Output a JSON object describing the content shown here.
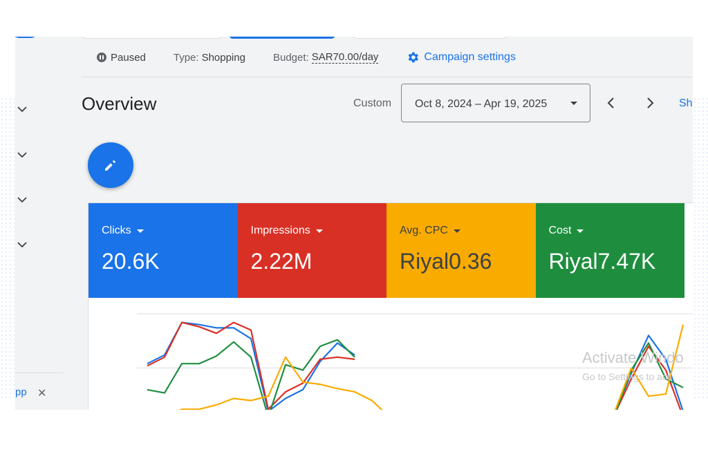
{
  "status": {
    "state": "Paused",
    "type_label": "Type:",
    "type_value": "Shopping",
    "budget_label": "Budget:",
    "budget_value": "SAR70.00/day",
    "settings_label": "Campaign settings"
  },
  "overview": {
    "title": "Overview",
    "range_label": "Custom",
    "date_range": "Oct 8, 2024 – Apr 19, 2025",
    "show_link": "Sh"
  },
  "sidebar": {
    "bottom_text": "pp",
    "close": "✕"
  },
  "metrics": [
    {
      "name": "Clicks",
      "value": "20.6K",
      "color": "#1a73e8"
    },
    {
      "name": "Impressions",
      "value": "2.22M",
      "color": "#d93025"
    },
    {
      "name": "Avg. CPC",
      "value": "Riyal0.36",
      "color": "#f9ab00"
    },
    {
      "name": "Cost",
      "value": "Riyal7.47K",
      "color": "#1e8e3e"
    }
  ],
  "watermark": {
    "line1": "Activate Windo",
    "line2": "Go to Settings to acti"
  },
  "chart_data": {
    "type": "line",
    "x": [
      0,
      1,
      2,
      3,
      4,
      5,
      6,
      7,
      8,
      9,
      10,
      11,
      12,
      13,
      14,
      15,
      16,
      17,
      18,
      19,
      20,
      21,
      22,
      23,
      24,
      25,
      26,
      27,
      28,
      29,
      30,
      31
    ],
    "ylim": [
      0,
      100
    ],
    "grid": true,
    "series": [
      {
        "color": "#1a73e8",
        "values": [
          54,
          62,
          92,
          90,
          87,
          87,
          77,
          10,
          22,
          30,
          56,
          73,
          62,
          null,
          null,
          null,
          null,
          null,
          null,
          null,
          null,
          null,
          null,
          null,
          null,
          null,
          null,
          7,
          45,
          80,
          58,
          10
        ]
      },
      {
        "color": "#d93025",
        "values": [
          52,
          60,
          92,
          88,
          82,
          92,
          85,
          12,
          28,
          36,
          58,
          60,
          58,
          null,
          null,
          null,
          null,
          null,
          null,
          null,
          null,
          null,
          null,
          null,
          null,
          null,
          null,
          6,
          40,
          70,
          48,
          5
        ]
      },
      {
        "color": "#1e8e3e",
        "values": [
          30,
          27,
          54,
          54,
          61,
          74,
          60,
          5,
          53,
          48,
          70,
          76,
          60,
          null,
          null,
          null,
          null,
          null,
          null,
          null,
          null,
          null,
          null,
          null,
          null,
          null,
          null,
          5,
          48,
          73,
          40,
          32
        ]
      },
      {
        "color": "#f9ab00",
        "values": [
          10,
          5,
          12,
          12,
          16,
          22,
          20,
          24,
          60,
          37,
          35,
          31,
          28,
          20,
          5,
          null,
          null,
          null,
          null,
          null,
          null,
          null,
          null,
          null,
          null,
          null,
          null,
          8,
          50,
          24,
          26,
          90
        ]
      }
    ]
  }
}
